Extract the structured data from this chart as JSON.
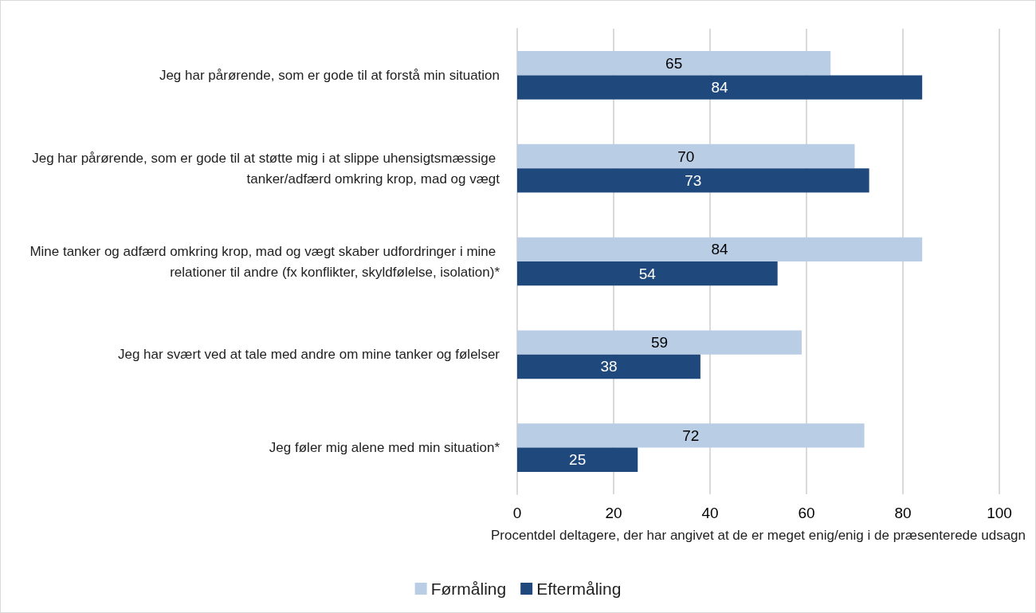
{
  "chart_data": {
    "type": "bar",
    "orientation": "horizontal",
    "categories": [
      "Jeg har pårørende, som er gode til at forstå min situation",
      "Jeg har pårørende, som er gode til at støtte mig i at slippe uhensigtsmæssige tanker/adfærd omkring krop, mad og vægt",
      "Mine tanker og adfærd omkring krop, mad og vægt skaber udfordringer i mine relationer til andre (fx konflikter, skyldfølelse, isolation)*",
      "Jeg har svært ved at tale med andre om mine tanker og følelser",
      "Jeg føler mig alene med min situation*"
    ],
    "series": [
      {
        "name": "Førmåling",
        "color": "#b9cde5",
        "values": [
          65,
          70,
          84,
          59,
          72
        ]
      },
      {
        "name": "Eftermåling",
        "color": "#1f497d",
        "values": [
          84,
          73,
          54,
          38,
          25
        ]
      }
    ],
    "xlabel": "Procentdel deltagere, der har angivet at de er meget enig/enig i de præsenterede udsagn",
    "xlim": [
      0,
      100
    ],
    "xticks": [
      0,
      20,
      40,
      60,
      80,
      100
    ],
    "grid": "x",
    "legend": "bottom",
    "data_labels": true
  }
}
